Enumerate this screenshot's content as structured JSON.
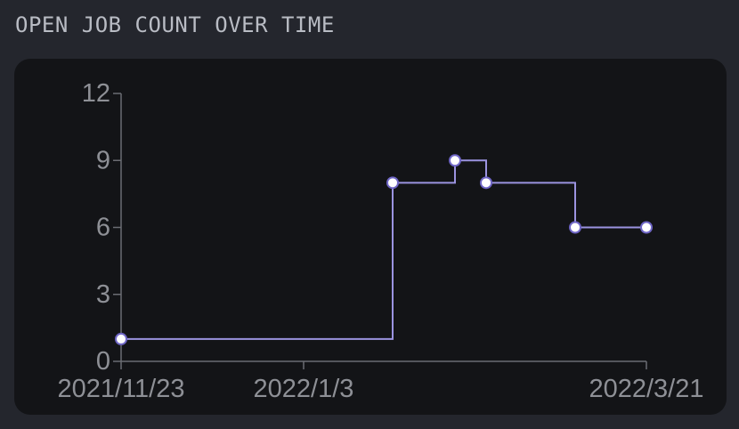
{
  "title": "OPEN JOB COUNT OVER TIME",
  "colors": {
    "background": "#24262d",
    "panel": "#131417",
    "line": "#9b93e0",
    "axis": "#6b6d73",
    "tick_text": "#8e9096",
    "point_fill": "#ffffff",
    "point_stroke": "#6f66c6"
  },
  "chart_data": {
    "type": "line",
    "step": true,
    "title": "OPEN JOB COUNT OVER TIME",
    "xlabel": "",
    "ylabel": "",
    "xlim": [
      "2021-11-23",
      "2022-03-21"
    ],
    "ylim": [
      0,
      12
    ],
    "x_ticks": [
      {
        "date": "2021-11-23",
        "label": "2021/11/23"
      },
      {
        "date": "2022-01-03",
        "label": "2022/1/3"
      },
      {
        "date": "2022-03-21",
        "label": "2022/3/21"
      }
    ],
    "y_ticks": [
      0,
      3,
      6,
      9,
      12
    ],
    "grid": false,
    "series": [
      {
        "name": "",
        "points": [
          {
            "x": "2021-11-23",
            "y": 1
          },
          {
            "x": "2022-01-23",
            "y": 8
          },
          {
            "x": "2022-02-06",
            "y": 9
          },
          {
            "x": "2022-02-13",
            "y": 8
          },
          {
            "x": "2022-03-05",
            "y": 6
          },
          {
            "x": "2022-03-21",
            "y": 6
          }
        ]
      }
    ]
  }
}
